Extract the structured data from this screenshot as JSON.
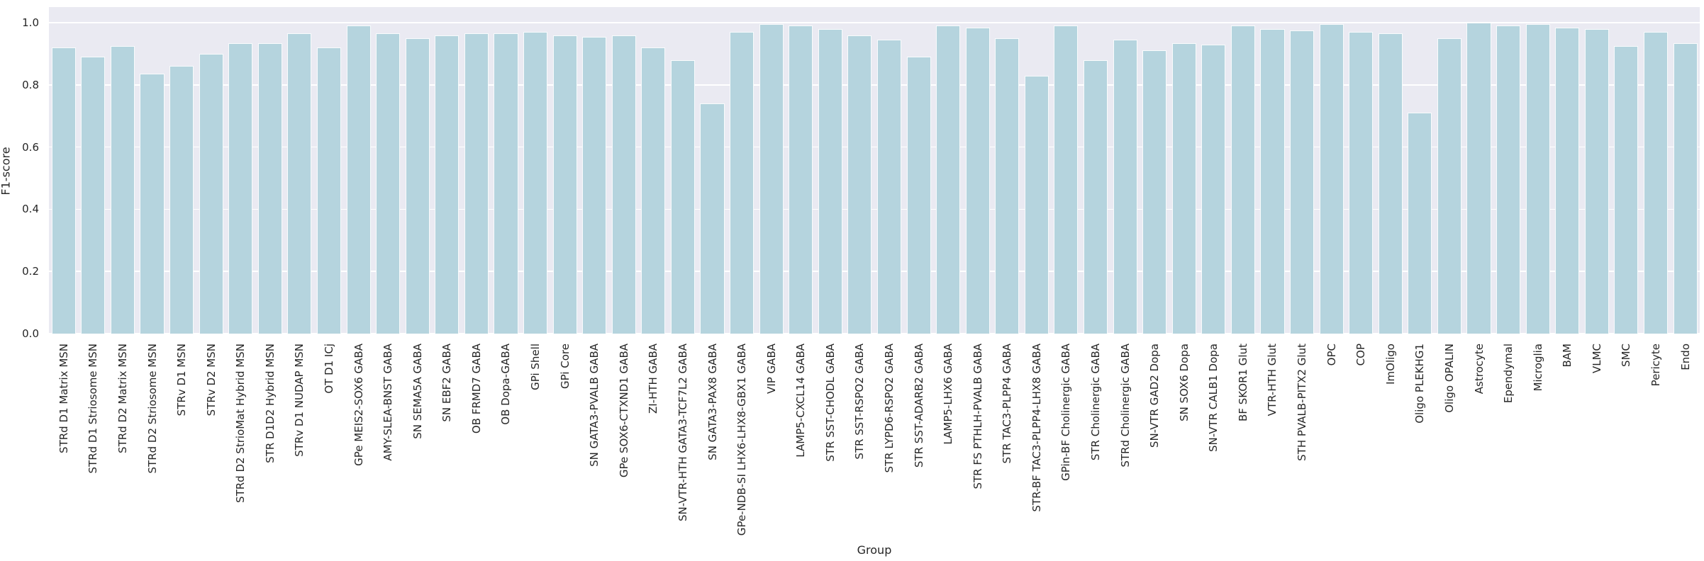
{
  "chart_data": {
    "type": "bar",
    "title": "",
    "xlabel": "Group",
    "ylabel": "F1-score",
    "ylim": [
      0,
      1.05
    ],
    "yticks": [
      0.0,
      0.2,
      0.4,
      0.6,
      0.8,
      1.0
    ],
    "grid": true,
    "legend": "none",
    "bar_color": "#b5d4de",
    "bar_edge_color": "#ffffff",
    "plot_bg": "#eaeaf2",
    "text_color": "#262626",
    "categories": [
      "STRd D1 Matrix MSN",
      "STRd D1 Striosome MSN",
      "STRd D2 Matrix MSN",
      "STRd D2 Striosome MSN",
      "STRv D1 MSN",
      "STRv D2 MSN",
      "STRd D2 StrioMat Hybrid MSN",
      "STR D1D2 Hybrid MSN",
      "STRv D1 NUDAP MSN",
      "OT D1 ICj",
      "GPe MEIS2-SOX6 GABA",
      "AMY-SLEA-BNST GABA",
      "SN SEMA5A GABA",
      "SN EBF2 GABA",
      "OB FRMD7 GABA",
      "OB Dopa-GABA",
      "GPi Shell",
      "GPi Core",
      "SN GATA3-PVALB GABA",
      "GPe SOX6-CTXND1 GABA",
      "ZI-HTH GABA",
      "SN-VTR-HTH GATA3-TCF7L2 GABA",
      "SN GATA3-PAX8 GABA",
      "GPe-NDB-SI LHX6-LHX8-GBX1 GABA",
      "VIP GABA",
      "LAMP5-CXCL14 GABA",
      "STR SST-CHODL GABA",
      "STR SST-RSPO2 GABA",
      "STR LYPD6-RSPO2 GABA",
      "STR SST-ADARB2 GABA",
      "LAMP5-LHX6 GABA",
      "STR FS PTHLH-PVALB GABA",
      "STR TAC3-PLPP4 GABA",
      "STR-BF TAC3-PLPP4-LHX8 GABA",
      "GPin-BF Cholinergic GABA",
      "STR Cholinergic GABA",
      "STRd Cholinergic GABA",
      "SN-VTR GAD2 Dopa",
      "SN SOX6 Dopa",
      "SN-VTR CALB1 Dopa",
      "BF SKOR1 Glut",
      "VTR-HTH Glut",
      "STH PVALB-PITX2 Glut",
      "OPC",
      "COP",
      "ImOligo",
      "Oligo PLEKHG1",
      "Oligo OPALIN",
      "Astrocyte",
      "Ependymal",
      "Microglia",
      "BAM",
      "VLMC",
      "SMC",
      "Pericyte",
      "Endo"
    ],
    "values": [
      0.92,
      0.89,
      0.925,
      0.835,
      0.86,
      0.9,
      0.935,
      0.935,
      0.965,
      0.92,
      0.99,
      0.965,
      0.95,
      0.96,
      0.965,
      0.965,
      0.97,
      0.96,
      0.955,
      0.96,
      0.92,
      0.88,
      0.74,
      0.97,
      0.995,
      0.99,
      0.98,
      0.96,
      0.945,
      0.89,
      0.99,
      0.985,
      0.95,
      0.83,
      0.99,
      0.88,
      0.945,
      0.91,
      0.935,
      0.93,
      0.99,
      0.98,
      0.975,
      0.995,
      0.97,
      0.965,
      0.71,
      0.95,
      1.0,
      0.99,
      0.995,
      0.985,
      0.98,
      0.925,
      0.97,
      0.935
    ]
  }
}
